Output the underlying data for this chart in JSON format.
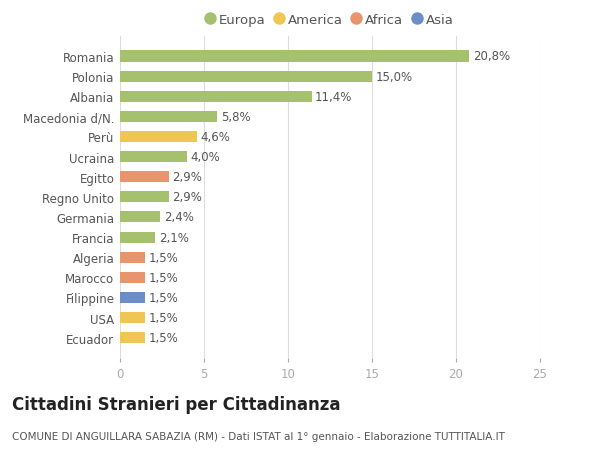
{
  "categories": [
    "Ecuador",
    "USA",
    "Filippine",
    "Marocco",
    "Algeria",
    "Francia",
    "Germania",
    "Regno Unito",
    "Egitto",
    "Ucraina",
    "Perù",
    "Macedonia d/N.",
    "Albania",
    "Polonia",
    "Romania"
  ],
  "values": [
    1.5,
    1.5,
    1.5,
    1.5,
    1.5,
    2.1,
    2.4,
    2.9,
    2.9,
    4.0,
    4.6,
    5.8,
    11.4,
    15.0,
    20.8
  ],
  "colors": [
    "#f0c653",
    "#f0c653",
    "#6b8ec9",
    "#e8956d",
    "#e8956d",
    "#a5c16e",
    "#a5c16e",
    "#a5c16e",
    "#e8956d",
    "#a5c16e",
    "#f0c653",
    "#a5c16e",
    "#a5c16e",
    "#a5c16e",
    "#a5c16e"
  ],
  "labels": [
    "1,5%",
    "1,5%",
    "1,5%",
    "1,5%",
    "1,5%",
    "2,1%",
    "2,4%",
    "2,9%",
    "2,9%",
    "4,0%",
    "4,6%",
    "5,8%",
    "11,4%",
    "15,0%",
    "20,8%"
  ],
  "legend_labels": [
    "Europa",
    "America",
    "Africa",
    "Asia"
  ],
  "legend_colors": [
    "#a5c16e",
    "#f0c653",
    "#e8956d",
    "#6b8ec9"
  ],
  "title": "Cittadini Stranieri per Cittadinanza",
  "subtitle": "COMUNE DI ANGUILLARA SABAZIA (RM) - Dati ISTAT al 1° gennaio - Elaborazione TUTTITALIA.IT",
  "xlim": [
    0,
    25
  ],
  "xticks": [
    0,
    5,
    10,
    15,
    20,
    25
  ],
  "background_color": "#ffffff",
  "plot_bg_color": "#ffffff",
  "grid_color": "#dddddd",
  "bar_height": 0.55,
  "title_fontsize": 12,
  "subtitle_fontsize": 7.5,
  "label_fontsize": 8.5,
  "tick_fontsize": 8.5,
  "legend_fontsize": 9.5
}
